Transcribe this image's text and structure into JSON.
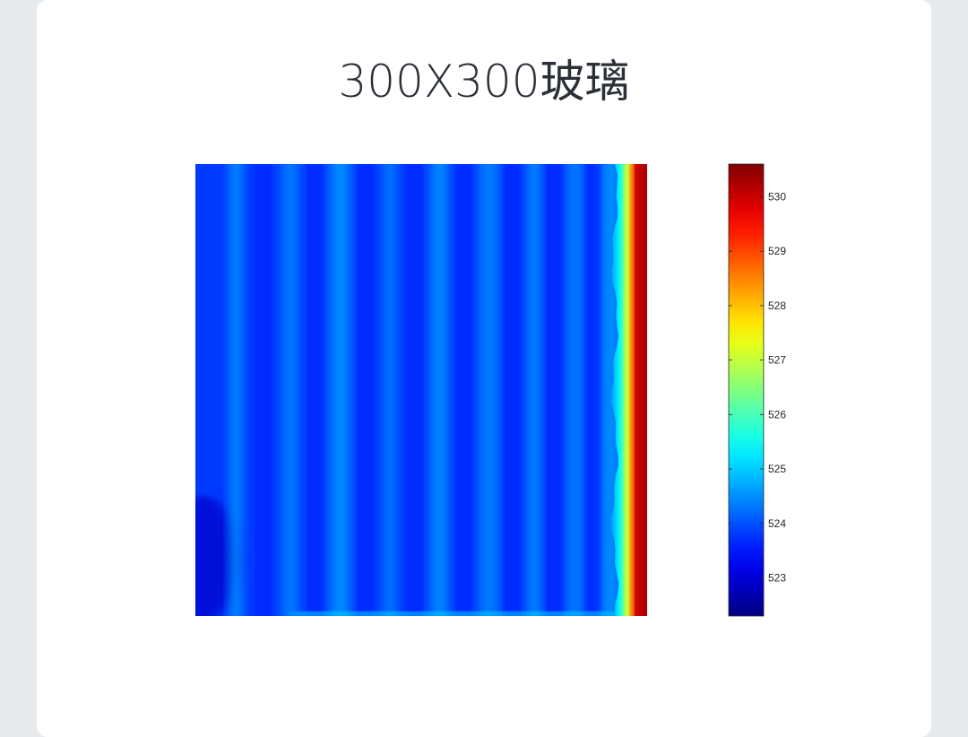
{
  "page": {
    "title": "300X300玻璃"
  },
  "chart_data": {
    "type": "heatmap",
    "title": "300X300玻璃",
    "xlabel": "",
    "ylabel": "",
    "colormap": "jet",
    "colorbar": {
      "range": [
        522.3,
        530.6
      ],
      "ticks": [
        523,
        524,
        525,
        526,
        527,
        528,
        529,
        530
      ],
      "tick_labels": [
        "523",
        "524",
        "525",
        "526",
        "527",
        "528",
        "529",
        "530"
      ],
      "placement": "right"
    },
    "description_values": {
      "background_level": 523.8,
      "stripe_peak_level": 524.6,
      "hot_edge_level": 530.3,
      "hot_edge_side": "right"
    },
    "grid": false
  },
  "colors": {
    "page_background": "#e7eaed",
    "card_background": "#ffffff",
    "title_color": "#2a2f38",
    "cold": "#00008f",
    "hot": "#800000"
  }
}
